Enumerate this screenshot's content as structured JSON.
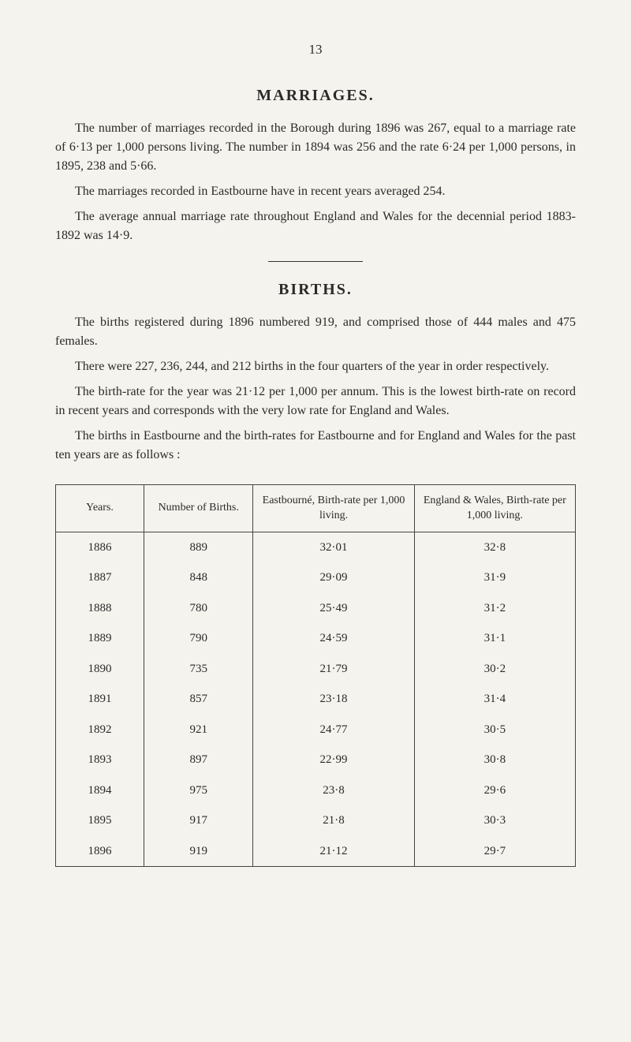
{
  "page_number": "13",
  "sections": {
    "marriages": {
      "heading": "MARRIAGES.",
      "p1": "The number of marriages recorded in the Borough during 1896 was 267, equal to a marriage rate of 6·13 per 1,000 persons living. The number in 1894 was 256 and the rate 6·24 per 1,000 persons, in 1895, 238 and 5·66.",
      "p2": "The marriages recorded in Eastbourne have in recent years averaged 254.",
      "p3": "The average annual marriage rate throughout England and Wales for the decennial period 1883-1892 was 14·9."
    },
    "births": {
      "heading": "BIRTHS.",
      "p1": "The births registered during 1896 numbered 919, and comprised those of 444 males and 475 females.",
      "p2": "There were 227, 236, 244, and 212 births in the four quarters of the year in order respectively.",
      "p3": "The birth-rate for the year was 21·12 per 1,000 per annum. This is the lowest birth-rate on record in recent years and corresponds with the very low rate for England and Wales.",
      "p4": "The births in Eastbourne and the birth-rates for Eastbourne and for England and Wales for the past ten years are as follows :"
    }
  },
  "table": {
    "headers": {
      "col1": "Years.",
      "col2": "Number of Births.",
      "col3": "Eastbourné, Birth-rate per 1,000 living.",
      "col4": "England & Wales, Birth-rate per 1,000 living."
    },
    "rows": [
      {
        "year": "1886",
        "births": "889",
        "eastbourne": "32·01",
        "england": "32·8"
      },
      {
        "year": "1887",
        "births": "848",
        "eastbourne": "29·09",
        "england": "31·9"
      },
      {
        "year": "1888",
        "births": "780",
        "eastbourne": "25·49",
        "england": "31·2"
      },
      {
        "year": "1889",
        "births": "790",
        "eastbourne": "24·59",
        "england": "31·1"
      },
      {
        "year": "1890",
        "births": "735",
        "eastbourne": "21·79",
        "england": "30·2"
      },
      {
        "year": "1891",
        "births": "857",
        "eastbourne": "23·18",
        "england": "31·4"
      },
      {
        "year": "1892",
        "births": "921",
        "eastbourne": "24·77",
        "england": "30·5"
      },
      {
        "year": "1893",
        "births": "897",
        "eastbourne": "22·99",
        "england": "30·8"
      },
      {
        "year": "1894",
        "births": "975",
        "eastbourne": "23·8",
        "england": "29·6"
      },
      {
        "year": "1895",
        "births": "917",
        "eastbourne": "21·8",
        "england": "30·3"
      },
      {
        "year": "1896",
        "births": "919",
        "eastbourne": "21·12",
        "england": "29·7"
      }
    ]
  },
  "colors": {
    "background": "#f5f3ed",
    "text": "#2a2a2a",
    "border": "#444444"
  }
}
